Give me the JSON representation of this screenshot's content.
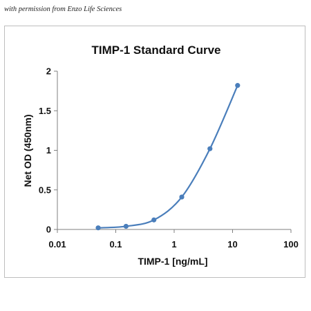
{
  "credit": "with permission from Enzo Life Sciences",
  "colors": {
    "series": "#4a7ebb",
    "axis": "#7f7f7f",
    "frame": "#bdbdbd"
  },
  "chart_data": {
    "type": "scatter",
    "title": "TIMP-1 Standard Curve",
    "xlabel": "TIMP-1 [ng/mL]",
    "ylabel": "Net OD (450nm)",
    "xscale": "log",
    "xlim": [
      0.01,
      100
    ],
    "ylim": [
      0,
      2
    ],
    "xticks": [
      0.01,
      0.1,
      1,
      10,
      100
    ],
    "xtick_labels": [
      "0.01",
      "0.1",
      "1",
      "10",
      "100"
    ],
    "yticks": [
      0,
      0.5,
      1,
      1.5,
      2
    ],
    "ytick_labels": [
      "0",
      "0.5",
      "1",
      "1.5",
      "2"
    ],
    "grid": false,
    "legend": "none",
    "series": [
      {
        "x": [
          0.05,
          0.15,
          0.45,
          1.35,
          4.1,
          12.2
        ],
        "y": [
          0.02,
          0.04,
          0.12,
          0.41,
          1.02,
          1.82
        ],
        "smooth_line": true
      }
    ]
  }
}
